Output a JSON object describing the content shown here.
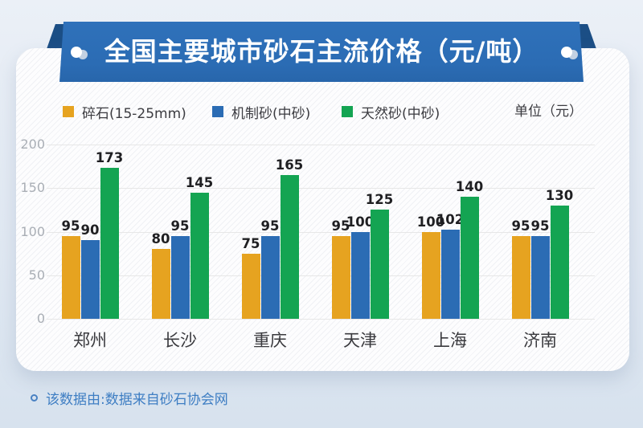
{
  "banner": {
    "title": "全国主要城市砂石主流价格（元/吨）"
  },
  "legend": {
    "items": [
      {
        "label": "碎石(15-25mm)",
        "color": "#E6A320"
      },
      {
        "label": "机制砂(中砂)",
        "color": "#2B6CB4"
      },
      {
        "label": "天然砂(中砂)",
        "color": "#14A452"
      }
    ],
    "unit_label": "单位（元）"
  },
  "chart_data": {
    "type": "bar",
    "title": "全国主要城市砂石主流价格（元/吨）",
    "categories": [
      "郑州",
      "长沙",
      "重庆",
      "天津",
      "上海",
      "济南"
    ],
    "series": [
      {
        "name": "碎石(15-25mm)",
        "color": "#E6A320",
        "values": [
          95,
          80,
          75,
          95,
          100,
          95
        ]
      },
      {
        "name": "机制砂(中砂)",
        "color": "#2B6CB4",
        "values": [
          90,
          95,
          95,
          100,
          102,
          95
        ]
      },
      {
        "name": "天然砂(中砂)",
        "color": "#14A452",
        "values": [
          173,
          145,
          165,
          125,
          140,
          130
        ]
      }
    ],
    "xlabel": "",
    "ylabel": "",
    "unit": "元",
    "ylim": [
      0,
      200
    ],
    "yticks": [
      0,
      50,
      100,
      150,
      200
    ],
    "grid": true,
    "legend_position": "top",
    "value_labels": true
  },
  "footer": {
    "bullet": "circle-outline-icon",
    "text": "该数据由:数据来自砂石协会网"
  },
  "colors": {
    "banner_blue": "#2B6CB4",
    "banner_fold": "#1B4E85",
    "card_bg": "#FDFDFE",
    "grid_line": "#E7E7E7",
    "axis_label": "#A9AEB5",
    "value_label": "#1F1F22",
    "category_label": "#3A3A3E",
    "footer_text": "#3E7EC3",
    "page_bg_top": "#EBF0F7",
    "page_bg_bottom": "#D7E2EE"
  }
}
